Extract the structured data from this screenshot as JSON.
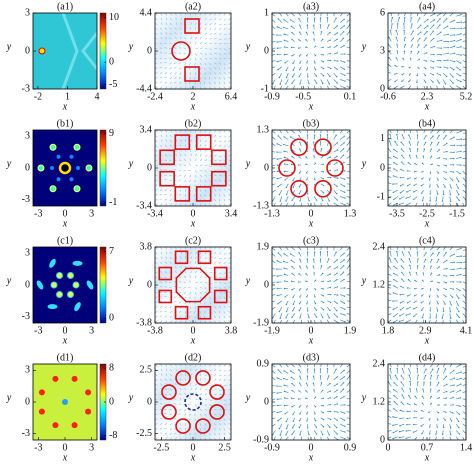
{
  "chart_data": [
    {
      "type": "heatmap",
      "title": "(a1)",
      "xlabel": "x",
      "ylabel": "y",
      "xlim": [
        -2.5,
        4
      ],
      "ylim": [
        -3,
        3
      ],
      "xticks": [
        -2,
        1,
        4
      ],
      "yticks": [
        -3,
        0,
        3
      ],
      "clim": [
        -6,
        11
      ],
      "cticks": [
        10,
        0,
        -5
      ],
      "color": "#2fc6d6",
      "cmap": [
        "#00008f",
        "#0080ff",
        "#00ffff",
        "#ffff00",
        "#ff4000",
        "#800000"
      ]
    },
    {
      "type": "density",
      "title": "(a2)",
      "xlabel": "x",
      "ylabel": "y",
      "xlim": [
        -2.4,
        6.4
      ],
      "ylim": [
        -4.4,
        4.4
      ],
      "xticks": [
        -2.4,
        2,
        6.4
      ],
      "yticks": [
        -4.4,
        0,
        4.4
      ],
      "color": "#3a8fd0"
    },
    {
      "type": "quiver",
      "title": "(a3)",
      "xlabel": "x",
      "ylabel": "y",
      "xlim": [
        -0.9,
        0.1
      ],
      "ylim": [
        -1,
        1
      ],
      "xticks": [
        -0.9,
        -0.5,
        0.1
      ],
      "yticks": [
        -1,
        0,
        1
      ],
      "color": "#3a8fd0"
    },
    {
      "type": "quiver",
      "title": "(a4)",
      "xlabel": "x",
      "ylabel": "y",
      "xlim": [
        -0.6,
        5.2
      ],
      "ylim": [
        0,
        6
      ],
      "xticks": [
        -0.6,
        2.3,
        5.2
      ],
      "yticks": [
        0,
        3,
        6
      ],
      "color": "#3a8fd0"
    },
    {
      "type": "heatmap",
      "title": "(b1)",
      "xlabel": "x",
      "ylabel": "y",
      "xlim": [
        -3.6,
        3.6
      ],
      "ylim": [
        -3.6,
        3.6
      ],
      "xticks": [
        -3,
        0,
        3
      ],
      "yticks": [
        -3,
        0,
        3
      ],
      "clim": [
        -1.5,
        9.5
      ],
      "cticks": [
        9,
        -1
      ],
      "color": "#00007a",
      "cmap": [
        "#00008f",
        "#0080ff",
        "#00ffff",
        "#ffff00",
        "#ff4000",
        "#800000"
      ]
    },
    {
      "type": "density",
      "title": "(b2)",
      "xlabel": "x",
      "ylabel": "y",
      "xlim": [
        -3.4,
        3.4
      ],
      "ylim": [
        -3.4,
        3.4
      ],
      "xticks": [
        -3.4,
        0,
        3.4
      ],
      "yticks": [
        -3.4,
        0,
        3.4
      ],
      "color": "#3a8fd0"
    },
    {
      "type": "quiver",
      "title": "(b3)",
      "xlabel": "x",
      "ylabel": "y",
      "xlim": [
        -1.3,
        1.3
      ],
      "ylim": [
        -1.3,
        1.3
      ],
      "xticks": [
        -1.3,
        0,
        1.3
      ],
      "yticks": [
        -1.3,
        0,
        1.3
      ],
      "color": "#3a8fd0"
    },
    {
      "type": "quiver",
      "title": "(b4)",
      "xlabel": "x",
      "ylabel": "y",
      "xlim": [
        -3.8,
        -1.2
      ],
      "ylim": [
        -1.3,
        1.3
      ],
      "xticks": [
        -3.5,
        -2.5,
        -1.5
      ],
      "yticks": [
        -1,
        0,
        1
      ],
      "color": "#3a8fd0"
    },
    {
      "type": "heatmap",
      "title": "(c1)",
      "xlabel": "x",
      "ylabel": "y",
      "xlim": [
        -3.6,
        3.6
      ],
      "ylim": [
        -3.6,
        3.6
      ],
      "xticks": [
        -3,
        0,
        3
      ],
      "yticks": [
        -3,
        0,
        3
      ],
      "clim": [
        -0.5,
        7.5
      ],
      "cticks": [
        7,
        0
      ],
      "color": "#00007a",
      "cmap": [
        "#00008f",
        "#0080ff",
        "#00ffff",
        "#ffff00",
        "#ff4000",
        "#800000"
      ]
    },
    {
      "type": "density",
      "title": "(c2)",
      "xlabel": "x",
      "ylabel": "y",
      "xlim": [
        -3.8,
        3.8
      ],
      "ylim": [
        -3.8,
        3.8
      ],
      "xticks": [
        -3.8,
        0,
        3.8
      ],
      "yticks": [
        -3.8,
        0,
        3.8
      ],
      "color": "#3a8fd0"
    },
    {
      "type": "quiver",
      "title": "(c3)",
      "xlabel": "x",
      "ylabel": "y",
      "xlim": [
        -1.9,
        1.9
      ],
      "ylim": [
        -1.9,
        1.9
      ],
      "xticks": [
        -1.9,
        0,
        1.9
      ],
      "yticks": [
        -1.9,
        0,
        1.9
      ],
      "color": "#3a8fd0"
    },
    {
      "type": "quiver",
      "title": "(c4)",
      "xlabel": "x",
      "ylabel": "y",
      "xlim": [
        1.8,
        4.1
      ],
      "ylim": [
        0,
        2.4
      ],
      "xticks": [
        1.8,
        2.9,
        4.1
      ],
      "yticks": [
        0,
        1.2,
        2.4
      ],
      "color": "#3a8fd0"
    },
    {
      "type": "heatmap",
      "title": "(d1)",
      "xlabel": "x",
      "ylabel": "y",
      "xlim": [
        -3.6,
        3.6
      ],
      "ylim": [
        -3.6,
        3.6
      ],
      "xticks": [
        -3,
        0,
        3
      ],
      "yticks": [
        -3,
        0,
        3
      ],
      "clim": [
        -9,
        9
      ],
      "cticks": [
        8,
        0,
        -8
      ],
      "color": "#c8f03c",
      "cmap": [
        "#00008f",
        "#0080ff",
        "#00ffff",
        "#ffff00",
        "#ff4000",
        "#800000"
      ]
    },
    {
      "type": "density",
      "title": "(d2)",
      "xlabel": "x",
      "ylabel": "y",
      "xlim": [
        -3,
        3
      ],
      "ylim": [
        -3,
        3
      ],
      "xticks": [
        -2.5,
        0,
        2.5
      ],
      "yticks": [
        -2.5,
        0,
        2.5
      ],
      "color": "#3a8fd0"
    },
    {
      "type": "quiver",
      "title": "(d3)",
      "xlabel": "x",
      "ylabel": "y",
      "xlim": [
        -0.9,
        0.9
      ],
      "ylim": [
        -0.9,
        0.9
      ],
      "xticks": [
        -0.9,
        0,
        0.9
      ],
      "yticks": [
        -0.9,
        0,
        0.9
      ],
      "color": "#3a8fd0"
    },
    {
      "type": "quiver",
      "title": "(d4)",
      "xlabel": "x",
      "ylabel": "y",
      "xlim": [
        0,
        1.4
      ],
      "ylim": [
        0,
        2.4
      ],
      "xticks": [
        0,
        0.7,
        1.4
      ],
      "yticks": [
        0,
        1.2,
        2.4
      ],
      "color": "#3a8fd0"
    }
  ]
}
